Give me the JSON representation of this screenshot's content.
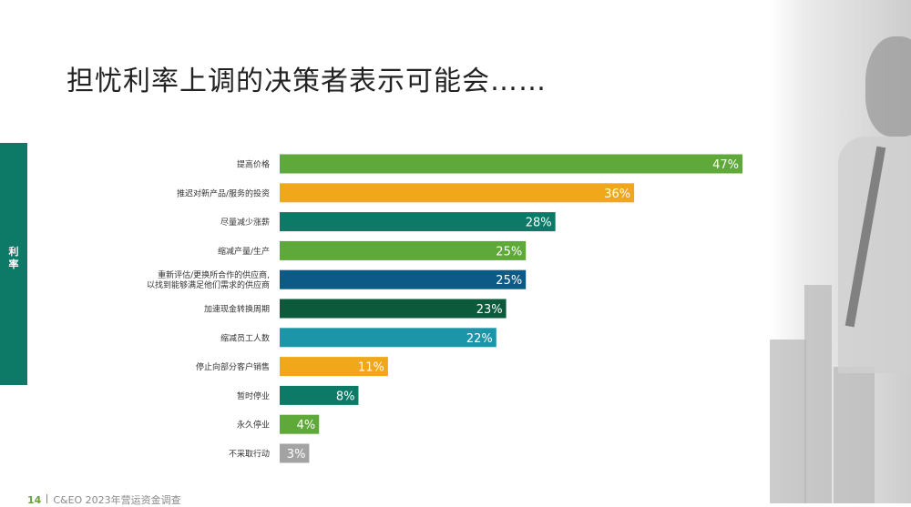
{
  "page": {
    "title": "担忧利率上调的决策者表示可能会……",
    "side_tab": [
      "利",
      "率"
    ],
    "footer": {
      "page_number": "14",
      "text": "C&EO 2023年营运资金调查"
    }
  },
  "chart_data": {
    "type": "bar",
    "orientation": "horizontal",
    "title": "",
    "xlabel": "",
    "ylabel": "",
    "xlim": [
      0,
      47
    ],
    "grid": false,
    "legend": false,
    "categories": [
      [
        "提高价格"
      ],
      [
        "推迟对新产品/服务的投资"
      ],
      [
        "尽量减少涨薪"
      ],
      [
        "缩减产量/生产"
      ],
      [
        "重新评估/更换所合作的供应商,",
        "以找到能够满足他们需求的供应商"
      ],
      [
        "加速现金转换周期"
      ],
      [
        "缩减员工人数"
      ],
      [
        "停止向部分客户销售"
      ],
      [
        "暂时停业"
      ],
      [
        "永久停业"
      ],
      [
        "不采取行动"
      ]
    ],
    "values": [
      47,
      36,
      28,
      25,
      25,
      23,
      22,
      11,
      8,
      4,
      3
    ],
    "value_labels": [
      "47%",
      "36%",
      "28%",
      "25%",
      "25%",
      "23%",
      "22%",
      "11%",
      "8%",
      "4%",
      "3%"
    ],
    "colors": [
      "#5fa83a",
      "#f0a719",
      "#0d7a67",
      "#5fa83a",
      "#0b5b86",
      "#0b5a3c",
      "#1b95a8",
      "#f0a719",
      "#0d7a67",
      "#5fa83a",
      "#a3a3a3"
    ]
  }
}
